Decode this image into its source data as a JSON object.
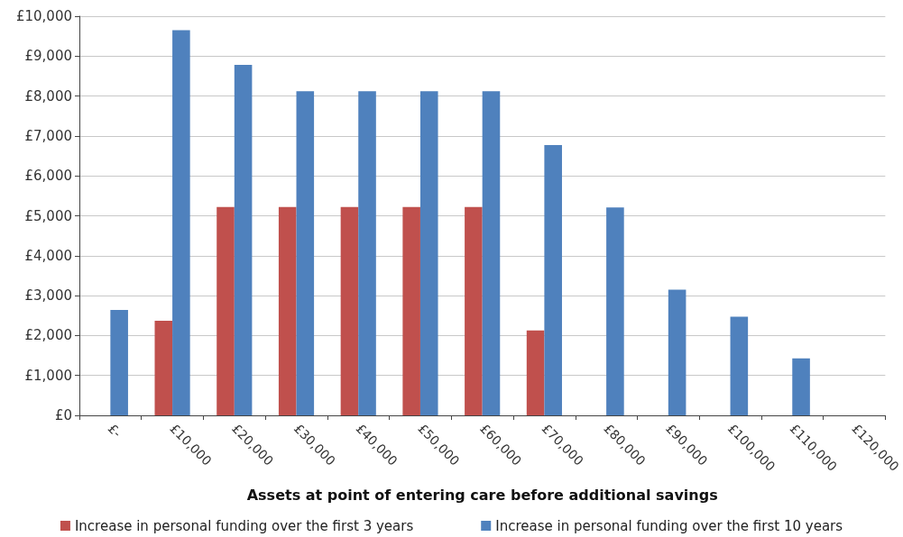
{
  "chart_data": {
    "type": "bar",
    "xlabel": "Assets at point of entering care before additional savings",
    "categories": [
      "£-",
      "£10,000",
      "£20,000",
      "£30,000",
      "£40,000",
      "£50,000",
      "£60,000",
      "£70,000",
      "£80,000",
      "£90,000",
      "£100,000",
      "£110,000",
      "£120,000"
    ],
    "series": [
      {
        "name": "Increase in personal funding over the first 3 years",
        "color": "#c0504d",
        "values": [
          0,
          2370,
          5220,
          5220,
          5220,
          5220,
          5220,
          2130,
          0,
          0,
          0,
          0,
          0
        ]
      },
      {
        "name": "Increase in personal funding over the first 10 years",
        "color": "#4f81bd",
        "values": [
          2640,
          9650,
          8780,
          8120,
          8120,
          8120,
          8120,
          6770,
          5210,
          3150,
          2470,
          1430,
          0
        ]
      }
    ],
    "ylim": [
      0,
      10000
    ],
    "yticks": [
      {
        "value": 0,
        "label": "£0"
      },
      {
        "value": 1000,
        "label": "£1,000"
      },
      {
        "value": 2000,
        "label": "£2,000"
      },
      {
        "value": 3000,
        "label": "£3,000"
      },
      {
        "value": 4000,
        "label": "£4,000"
      },
      {
        "value": 5000,
        "label": "£5,000"
      },
      {
        "value": 6000,
        "label": "£6,000"
      },
      {
        "value": 7000,
        "label": "£7,000"
      },
      {
        "value": 8000,
        "label": "£8,000"
      },
      {
        "value": 9000,
        "label": "£9,000"
      },
      {
        "value": 10000,
        "label": "£10,000"
      }
    ],
    "grid": "y",
    "legend": "bottom"
  }
}
